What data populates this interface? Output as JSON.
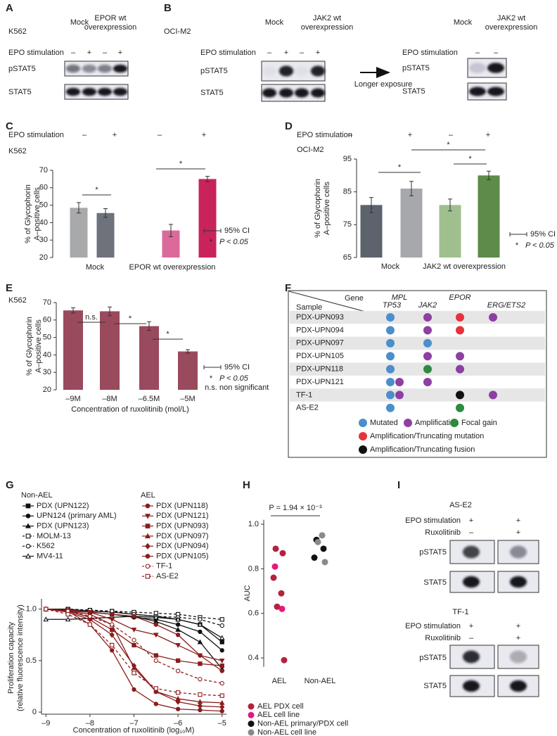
{
  "blots": [
    {
      "panel": "A",
      "cell_line": "K562",
      "headers": [
        [
          "Mock"
        ],
        [
          "EPOR wt",
          "overexpression"
        ]
      ],
      "rows": [
        {
          "label": "EPO stimulation",
          "signs": [
            "–",
            "+",
            "–",
            "+"
          ]
        }
      ],
      "proteins": [
        "pSTAT5",
        "STAT5"
      ]
    },
    {
      "panel": "B",
      "cell_line": "OCI-M2",
      "headers": [
        [
          "Mock"
        ],
        [
          "JAK2 wt",
          "overexpression"
        ]
      ],
      "rows": [
        {
          "label": "EPO stimulation",
          "signs": [
            "–",
            "+",
            "–",
            "+"
          ]
        }
      ],
      "proteins": [
        "pSTAT5",
        "STAT5"
      ],
      "note": "Longer exposure"
    },
    {
      "headers": [
        [
          "Mock"
        ],
        [
          "JAK2 wt",
          "overexpression"
        ]
      ],
      "rows": [
        {
          "label": "EPO stimulation",
          "signs": [
            "–",
            "–"
          ]
        }
      ],
      "proteins": [
        "pSTAT5",
        "STAT5"
      ]
    },
    {
      "panel": "I",
      "cell_line": "AS-E2",
      "rows": [
        {
          "label": "EPO stimulation",
          "signs": [
            "+",
            "+"
          ]
        },
        {
          "label": "Ruxolitinib",
          "signs": [
            "–",
            "+"
          ]
        }
      ],
      "proteins": [
        "pSTAT5",
        "STAT5"
      ]
    },
    {
      "cell_line": "TF-1",
      "rows": [
        {
          "label": "EPO stimulation",
          "signs": [
            "+",
            "+"
          ]
        },
        {
          "label": "Ruxolitinib",
          "signs": [
            "–",
            "+"
          ]
        }
      ],
      "proteins": [
        "pSTAT5",
        "STAT5"
      ]
    }
  ],
  "chart_data": [
    {
      "type": "bar",
      "panel": "C",
      "subtitle": "K562",
      "stimulation_label": "EPO stimulation",
      "categories": [
        "–",
        "+",
        "–",
        "+"
      ],
      "groups": [
        "Mock",
        "EPOR wt overexpression"
      ],
      "values": [
        48.5,
        45.5,
        35.5,
        65
      ],
      "errors": [
        3,
        2.5,
        3.5,
        1.5
      ],
      "colors": [
        "#a8a9ab",
        "#6d727b",
        "#db6a9b",
        "#c8235d"
      ],
      "ylabel": [
        "% of Glycophorin",
        "A–positive cells"
      ],
      "ylim": [
        20,
        70
      ],
      "yticks": [
        20,
        30,
        40,
        50,
        60,
        70
      ],
      "annotations": [
        "*",
        "*"
      ],
      "ci_label": "95% CI",
      "sig_symbol": "*",
      "sig_text": "P < 0.05"
    },
    {
      "type": "bar",
      "panel": "D",
      "subtitle": "OCI-M2",
      "stimulation_label": "EPO stimulation",
      "categories": [
        "–",
        "+",
        "–",
        "+"
      ],
      "groups": [
        "Mock",
        "JAK2 wt overexpression"
      ],
      "values": [
        81,
        86,
        81,
        90
      ],
      "errors": [
        2.3,
        2.2,
        1.8,
        1.3
      ],
      "colors": [
        "#5c636c",
        "#a7a8ad",
        "#9fc08e",
        "#5e8b49"
      ],
      "ylabel": [
        "% of Glycophorin",
        "A–positive cells"
      ],
      "ylim": [
        65,
        95
      ],
      "yticks": [
        65,
        75,
        85,
        95
      ],
      "annotations": [
        "*",
        "*",
        "*"
      ],
      "ci_label": "95% CI",
      "sig_symbol": "*",
      "sig_text": "P < 0.05"
    },
    {
      "type": "bar",
      "panel": "E",
      "subtitle": "K562",
      "categories": [
        "–9M",
        "–8M",
        "–6.5M",
        "–5M"
      ],
      "xlabel": "Concentration of ruxolitinib (mol/L)",
      "values": [
        65.5,
        65,
        56.5,
        42
      ],
      "errors": [
        1.5,
        2.5,
        2.5,
        1
      ],
      "color": "#9a4a5d",
      "ylabel": [
        "% of Glycophorin",
        "A–positive cells"
      ],
      "ylim": [
        20,
        70
      ],
      "yticks": [
        20,
        30,
        40,
        50,
        60,
        70
      ],
      "annotations": [
        "n.s.",
        "*",
        "*"
      ],
      "ci_label": "95% CI",
      "sig_symbol": "*",
      "sig_text": "P < 0.05",
      "ns_symbol": "n.s.",
      "ns_text": "non significant"
    },
    {
      "type": "line",
      "panel": "G",
      "x": [
        -9,
        -8.5,
        -8,
        -7.5,
        -7,
        -6.5,
        -6,
        -5.5,
        -5
      ],
      "xlim": [
        -9.1,
        -4.9
      ],
      "xticks": [
        {
          "value": -9,
          "label": "–9"
        },
        {
          "value": -8,
          "label": "–8"
        },
        {
          "value": -7,
          "label": "–7"
        },
        {
          "value": -6,
          "label": "–6"
        },
        {
          "value": -5,
          "label": "–5"
        }
      ],
      "ylim": [
        -0.02,
        1.1
      ],
      "yticks": [
        0,
        0.5,
        {
          "value": 1,
          "label": "1.0"
        }
      ],
      "xlabel": "Concentration of ruxolitinib (log₁₀M)",
      "ylabel": [
        "Proliferation capacity",
        "(relative fluorescence intensity)"
      ],
      "groups": [
        {
          "title": "Non-AEL",
          "series": [
            {
              "name": "PDX (UPN122)",
              "color": "#111111",
              "marker": "square",
              "filled": true,
              "dashed": false,
              "values": [
                1,
                1,
                0.98,
                0.97,
                0.95,
                0.93,
                0.9,
                0.85,
                0.68
              ]
            },
            {
              "name": "UPN124 (primary AML)",
              "color": "#111111",
              "marker": "circle",
              "filled": true,
              "dashed": false,
              "values": [
                1,
                0.98,
                0.97,
                0.95,
                0.92,
                0.9,
                0.85,
                0.78,
                0.6
              ]
            },
            {
              "name": "PDX (UPN123)",
              "color": "#111111",
              "marker": "triangle",
              "filled": true,
              "dashed": false,
              "values": [
                1,
                0.99,
                0.97,
                0.95,
                0.93,
                0.88,
                0.8,
                0.68,
                0.42
              ]
            },
            {
              "name": "MOLM-13",
              "color": "#111111",
              "marker": "square",
              "filled": false,
              "dashed": true,
              "values": [
                1,
                1,
                0.99,
                0.98,
                0.97,
                0.96,
                0.95,
                0.92,
                0.9
              ]
            },
            {
              "name": "K562",
              "color": "#111111",
              "marker": "circle",
              "filled": false,
              "dashed": true,
              "values": [
                1,
                1,
                0.99,
                0.98,
                0.95,
                0.93,
                0.92,
                0.9,
                0.84
              ]
            },
            {
              "name": "MV4-11",
              "color": "#111111",
              "marker": "triangle",
              "filled": false,
              "dashed": false,
              "values": [
                0.9,
                0.9,
                0.91,
                0.92,
                0.93,
                0.92,
                0.9,
                0.85,
                0.72
              ]
            }
          ]
        },
        {
          "title": "AEL",
          "series": [
            {
              "name": "PDX (UPN118)",
              "color": "#8b1c1c",
              "marker": "circle",
              "filled": true,
              "dashed": false,
              "values": [
                1,
                0.98,
                0.85,
                0.6,
                0.22,
                0.08,
                0.03,
                0.02,
                0.01
              ]
            },
            {
              "name": "PDX (UPN121)",
              "color": "#8b1c1c",
              "marker": "triangle-down",
              "filled": true,
              "dashed": false,
              "values": [
                1,
                0.99,
                0.97,
                0.9,
                0.8,
                0.75,
                0.65,
                0.55,
                0.5
              ]
            },
            {
              "name": "PDX (UPN093)",
              "color": "#8b1c1c",
              "marker": "square",
              "filled": true,
              "dashed": false,
              "values": [
                1,
                0.98,
                0.92,
                0.8,
                0.65,
                0.55,
                0.5,
                0.47,
                0.45
              ]
            },
            {
              "name": "PDX (UPN097)",
              "color": "#8b1c1c",
              "marker": "triangle",
              "filled": true,
              "dashed": false,
              "values": [
                1,
                0.98,
                0.95,
                0.85,
                0.43,
                0.2,
                0.13,
                0.1,
                0.09
              ]
            },
            {
              "name": "PDX (UPN094)",
              "color": "#8b1c1c",
              "marker": "diamond",
              "filled": true,
              "dashed": false,
              "values": [
                1,
                0.97,
                0.9,
                0.75,
                0.45,
                0.2,
                0.1,
                0.06,
                0.05
              ]
            },
            {
              "name": "PDX (UPN105)",
              "color": "#8b1c1c",
              "marker": "circle",
              "filled": true,
              "dashed": false,
              "values": [
                1,
                0.98,
                0.97,
                0.95,
                0.93,
                0.85,
                0.75,
                0.55,
                0.4
              ]
            },
            {
              "name": "TF-1",
              "color": "#8b1c1c",
              "marker": "circle",
              "filled": false,
              "dashed": true,
              "values": [
                1,
                0.98,
                0.93,
                0.85,
                0.7,
                0.5,
                0.4,
                0.32,
                0.28
              ]
            },
            {
              "name": "AS-E2",
              "color": "#8b1c1c",
              "marker": "square",
              "filled": false,
              "dashed": true,
              "values": [
                1,
                0.95,
                0.85,
                0.65,
                0.38,
                0.23,
                0.19,
                0.17,
                0.16
              ]
            }
          ]
        }
      ]
    },
    {
      "type": "scatter",
      "panel": "H",
      "categories": [
        "AEL",
        "Non-AEL"
      ],
      "ylabel": "AUC",
      "ylim": [
        0.36,
        1.02
      ],
      "yticks": [
        0.4,
        0.6,
        0.8,
        {
          "value": 1,
          "label": "1.0"
        }
      ],
      "annotation": "P = 1.94 × 10⁻³",
      "series": [
        {
          "name": "AEL PDX cell",
          "color": "#b5213f",
          "values": [
            [
              0.89,
              0.87,
              0.76,
              0.69,
              0.63,
              0.39
            ],
            []
          ]
        },
        {
          "name": "AEL cell line",
          "color": "#e5197e",
          "values": [
            [
              0.81,
              0.62
            ],
            []
          ]
        },
        {
          "name": "Non-AEL primary/PDX cell",
          "color": "#111111",
          "values": [
            [],
            [
              0.93,
              0.89,
              0.85
            ]
          ]
        },
        {
          "name": "Non-AEL cell line",
          "color": "#8a8a8a",
          "values": [
            [],
            [
              0.95,
              0.92,
              0.83
            ]
          ]
        }
      ]
    }
  ],
  "table": {
    "panel": "F",
    "corner": {
      "column": "Gene",
      "row": "Sample"
    },
    "columns": [
      "TP53",
      "MPL",
      "JAK2",
      "EPOR",
      "ERG/ETS2"
    ],
    "rows": [
      {
        "sample": "PDX-UPN093",
        "cells": [
          "Mutated",
          null,
          "Amplification",
          "Amplification/Truncating mutation",
          "Amplification"
        ]
      },
      {
        "sample": "PDX-UPN094",
        "cells": [
          "Mutated",
          null,
          "Amplification",
          "Amplification/Truncating mutation",
          null
        ]
      },
      {
        "sample": "PDX-UPN097",
        "cells": [
          "Mutated",
          null,
          "Mutated",
          null,
          null
        ]
      },
      {
        "sample": "PDX-UPN105",
        "cells": [
          "Mutated",
          null,
          "Amplification",
          "Amplification",
          null
        ]
      },
      {
        "sample": "PDX-UPN118",
        "cells": [
          "Mutated",
          null,
          "Focal gain",
          "Amplification",
          null
        ]
      },
      {
        "sample": "PDX-UPN121",
        "cells": [
          "Mutated",
          "Amplification",
          "Amplification",
          null,
          null
        ]
      },
      {
        "sample": "TF-1",
        "cells": [
          "Mutated",
          "Amplification",
          null,
          "Amplification/Truncating fusion",
          "Amplification"
        ]
      },
      {
        "sample": "AS-E2",
        "cells": [
          "Mutated",
          null,
          null,
          "Focal gain",
          null
        ]
      }
    ],
    "legend": [
      {
        "label": "Mutated",
        "color": "#4b8ecc"
      },
      {
        "label": "Amplification",
        "color": "#8e3fa2"
      },
      {
        "label": "Focal gain",
        "color": "#2e8b3e"
      },
      {
        "label": "Amplification/Truncating mutation",
        "color": "#e6323c"
      },
      {
        "label": "Amplification/Truncating fusion",
        "color": "#111111"
      }
    ]
  }
}
